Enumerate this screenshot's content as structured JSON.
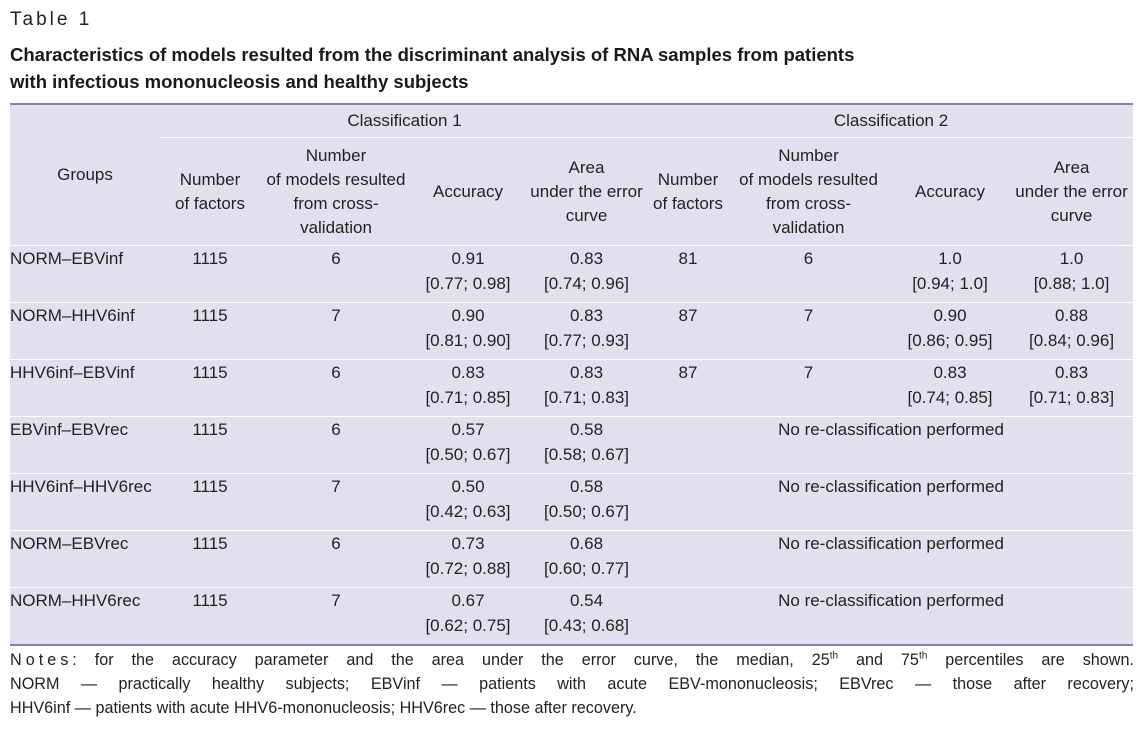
{
  "label": "Table 1",
  "title": [
    "Characteristics of models resulted from the discriminant analysis of RNA samples from patients",
    "with infectious mononucleosis and healthy subjects"
  ],
  "header": {
    "groups": "Groups",
    "classification1": "Classification 1",
    "classification2": "Classification 2",
    "number_of_factors": [
      "Number",
      "of factors"
    ],
    "number_of_models": [
      "Number",
      "of models resulted",
      "from cross-",
      "validation"
    ],
    "accuracy": "Accuracy",
    "area": [
      "Area",
      "under the error",
      "curve"
    ]
  },
  "rows": [
    {
      "group": "NORM–EBVinf",
      "c1_factors": "1115",
      "c1_models": "6",
      "c1_acc": [
        "0.91",
        "[0.77; 0.98]"
      ],
      "c1_area": [
        "0.83",
        "[0.74; 0.96]"
      ],
      "c2_factors": "81",
      "c2_models": "6",
      "c2_acc": [
        "1.0",
        "[0.94; 1.0]"
      ],
      "c2_area": [
        "1.0",
        "[0.88; 1.0]"
      ]
    },
    {
      "group": "NORM–HHV6inf",
      "c1_factors": "1115",
      "c1_models": "7",
      "c1_acc": [
        "0.90",
        "[0.81; 0.90]"
      ],
      "c1_area": [
        "0.83",
        "[0.77; 0.93]"
      ],
      "c2_factors": "87",
      "c2_models": "7",
      "c2_acc": [
        "0.90",
        "[0.86; 0.95]"
      ],
      "c2_area": [
        "0.88",
        "[0.84; 0.96]"
      ]
    },
    {
      "group": "HHV6inf–EBVinf",
      "c1_factors": "1115",
      "c1_models": "6",
      "c1_acc": [
        "0.83",
        "[0.71; 0.85]"
      ],
      "c1_area": [
        "0.83",
        "[0.71; 0.83]"
      ],
      "c2_factors": "87",
      "c2_models": "7",
      "c2_acc": [
        "0.83",
        "[0.74; 0.85]"
      ],
      "c2_area": [
        "0.83",
        "[0.71; 0.83]"
      ]
    },
    {
      "group": "EBVinf–EBVrec",
      "c1_factors": "1115",
      "c1_models": "6",
      "c1_acc": [
        "0.57",
        "[0.50; 0.67]"
      ],
      "c1_area": [
        "0.58",
        "[0.58; 0.67]"
      ],
      "c2_text": "No re-classification performed"
    },
    {
      "group": "HHV6inf–HHV6rec",
      "c1_factors": "1115",
      "c1_models": "7",
      "c1_acc": [
        "0.50",
        "[0.42; 0.63]"
      ],
      "c1_area": [
        "0.58",
        "[0.50; 0.67]"
      ],
      "c2_text": "No re-classification performed"
    },
    {
      "group": "NORM–EBVrec",
      "c1_factors": "1115",
      "c1_models": "6",
      "c1_acc": [
        "0.73",
        "[0.72; 0.88]"
      ],
      "c1_area": [
        "0.68",
        "[0.60; 0.77]"
      ],
      "c2_text": "No re-classification performed"
    },
    {
      "group": "NORM–HHV6rec",
      "c1_factors": "1115",
      "c1_models": "7",
      "c1_acc": [
        "0.67",
        "[0.62; 0.75]"
      ],
      "c1_area": [
        "0.54",
        "[0.43; 0.68]"
      ],
      "c2_text": "No re-classification performed"
    }
  ],
  "notes": {
    "label": "Notes",
    "line1_a": ": for the accuracy parameter and the area under the error curve, the median, 25",
    "sup1": "th",
    "line1_b": " and 75",
    "sup2": "th",
    "line1_c": " percentiles are shown.",
    "line2": "NORM — practically healthy subjects; EBVinf — patients with acute EBV-mononucleosis; EBVrec — those after recovery;",
    "line3": "HHV6inf — patients with acute HHV6-mononucleosis; HHV6rec — those after recovery."
  }
}
